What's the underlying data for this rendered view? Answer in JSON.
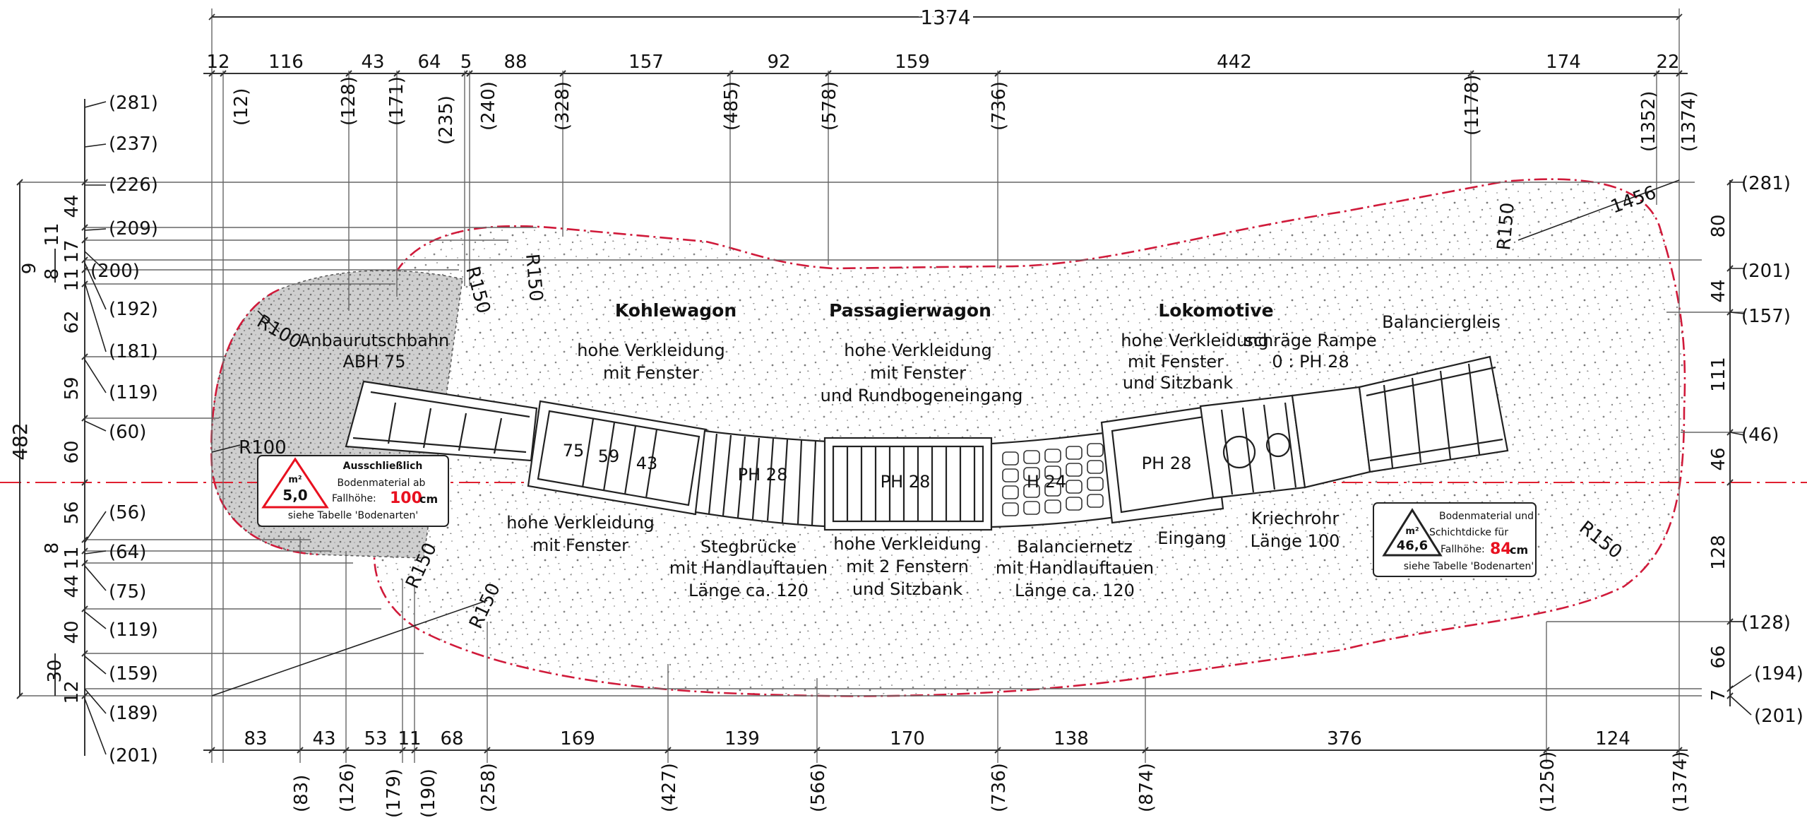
{
  "top_dims": {
    "overall": "1374",
    "segments": [
      "12",
      "116",
      "43",
      "64",
      "5",
      "88",
      "157",
      "92",
      "159",
      "442",
      "174",
      "22"
    ],
    "stations": [
      "(12)",
      "(128)",
      "(171)",
      "(235)",
      "(240)",
      "(328)",
      "(485)",
      "(578)",
      "(736)",
      "(1178)",
      "(1352)",
      "(1374)"
    ]
  },
  "bottom_dims": {
    "segments": [
      "83",
      "43",
      "53",
      "11",
      "68",
      "169",
      "139",
      "170",
      "138",
      "376",
      "124"
    ],
    "stations": [
      "(83)",
      "(126)",
      "(179)",
      "(190)",
      "(258)",
      "(427)",
      "(566)",
      "(736)",
      "(874)",
      "(1250)",
      "(1374)"
    ]
  },
  "left_dims": {
    "overall": "482",
    "outer": [
      "9",
      "30"
    ],
    "segments": [
      "44",
      "11",
      "17",
      "8",
      "11",
      "62",
      "59",
      "60",
      "56",
      "8",
      "11",
      "44",
      "40",
      "12"
    ],
    "stations": [
      "(281)",
      "(237)",
      "(226)",
      "(209)",
      "(200)",
      "(192)",
      "(181)",
      "(119)",
      "(60)",
      "(56)",
      "(64)",
      "(75)",
      "(119)",
      "(159)",
      "(189)",
      "(201)"
    ]
  },
  "right_dims": {
    "segments": [
      "80",
      "44",
      "111",
      "46",
      "128",
      "66",
      "7"
    ],
    "stations": [
      "(281)",
      "(201)",
      "(157)",
      "(46)",
      "(128)",
      "(194)",
      "(201)"
    ]
  },
  "radii": {
    "r100_top": "R100",
    "r100_left": "R100",
    "r150_a": "R150",
    "r150_b": "R150",
    "r150_c": "R150",
    "r150_d": "R150",
    "r150_e": "R150",
    "r150_f": "R150",
    "diag": "1456"
  },
  "labels": {
    "anbau_1": "Anbaurutschbahn",
    "anbau_2": "ABH 75",
    "kohle_title": "Kohlewagon",
    "kohle_1": "hohe Verkleidung",
    "kohle_2": "mit Fenster",
    "passagier_title": "Passagierwagon",
    "passagier_1": "hohe Verkleidung",
    "passagier_2": "mit Fenster",
    "passagier_3": "und Rundbogeneingang",
    "lok_title": "Lokomotive",
    "lok_1": "hohe Verkleidung",
    "lok_2": "mit Fenster",
    "lok_3": "und Sitzbank",
    "rampe_1": "schräge Rampe",
    "rampe_2": "0 : PH 28",
    "balanciergleis": "Balanciergleis",
    "slide_75": "75",
    "slide_59": "59",
    "slide_43": "43",
    "ph28_a": "PH 28",
    "ph28_b": "PH 28",
    "ph28_c": "PH 28",
    "h24": "H 24",
    "below_kohle_1": "hohe Verkleidung",
    "below_kohle_2": "mit Fenster",
    "steg_1": "Stegbrücke",
    "steg_2": "mit Handlauftauen",
    "steg_3": "Länge ca. 120",
    "below_pass_1": "hohe Verkleidung",
    "below_pass_2": "mit 2 Fenstern",
    "below_pass_3": "und Sitzbank",
    "netz_1": "Balanciernetz",
    "netz_2": "mit Handlauftauen",
    "netz_3": "Länge ca. 120",
    "eingang": "Eingang",
    "kriech_1": "Kriechrohr",
    "kriech_2": "Länge 100"
  },
  "box_left": {
    "title": "Ausschließlich",
    "line1": "Bodenmaterial ab",
    "line2": "Fallhöhe:",
    "value": "100",
    "unit": "cm",
    "area_unit": "m²",
    "area": "5,0",
    "footer": "siehe Tabelle 'Bodenarten'"
  },
  "box_right": {
    "line1": "Bodenmaterial und",
    "line2": "Schichtdicke für",
    "line3": "Fallhöhe:",
    "value": "84",
    "unit": "cm",
    "area_unit": "m²",
    "area": "46,6",
    "footer": "siehe Tabelle 'Bodenarten'"
  },
  "colors": {
    "boundary": "#d01a3a",
    "highlight": "#e8101f",
    "centerline": "#e02030"
  }
}
